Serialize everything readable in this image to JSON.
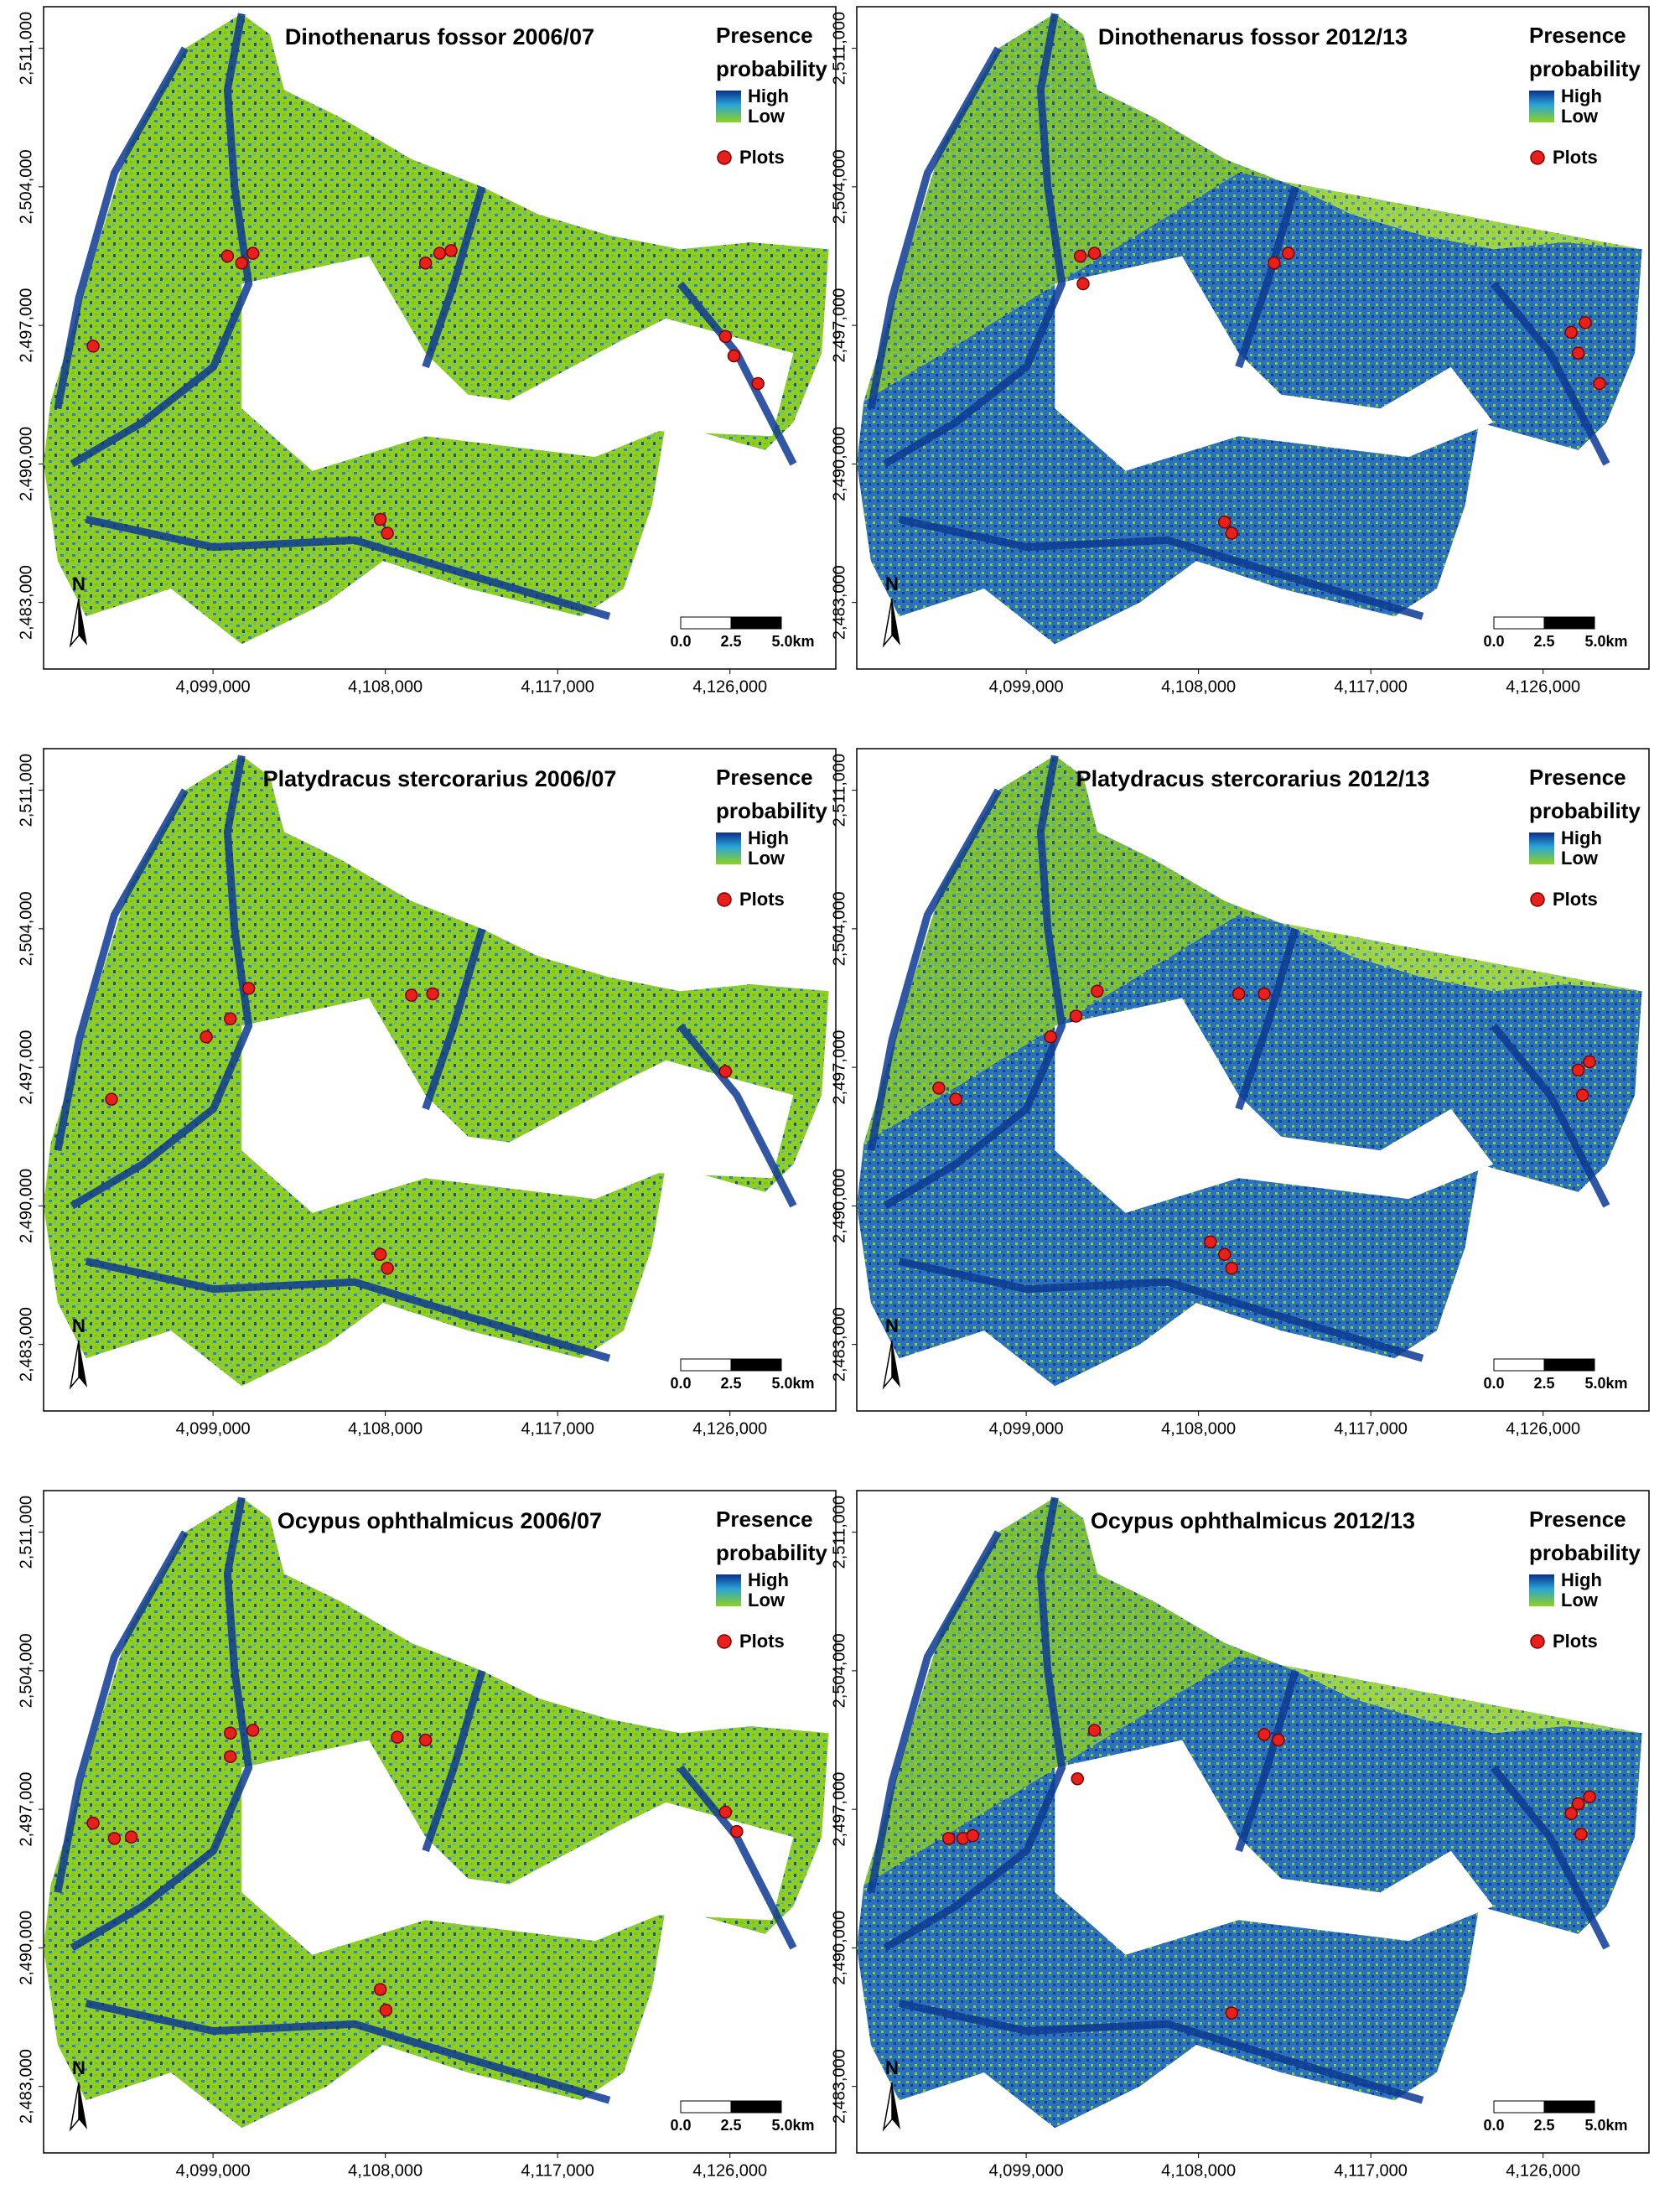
{
  "panels": [
    {
      "title": "Dinothenarus fossor 2006/07"
    },
    {
      "title": "Dinothenarus fossor 2012/13"
    },
    {
      "title": "Platydracus stercorarius 2006/07"
    },
    {
      "title": "Platydracus stercorarius 2012/13"
    },
    {
      "title": "Ocypus ophthalmicus 2006/07"
    },
    {
      "title": "Ocypus ophthalmicus 2012/13"
    }
  ],
  "legend": {
    "title_lines": [
      "Presence",
      "probability"
    ],
    "high": "High",
    "low": "Low",
    "plots": "Plots"
  },
  "scale_bar": {
    "labels": [
      "0.0",
      "2.5",
      "5.0km"
    ]
  },
  "north": "N",
  "axes": {
    "xlim": [
      4090150,
      4131530
    ],
    "ylim": [
      2479640,
      2513100
    ],
    "xticks": [
      {
        "value": 4099000,
        "label": "4,099,000"
      },
      {
        "value": 4108000,
        "label": "4,108,000"
      },
      {
        "value": 4117000,
        "label": "4,117,000"
      },
      {
        "value": 4126000,
        "label": "4,126,000"
      }
    ],
    "yticks": [
      {
        "value": 2483000,
        "label": "2,483,000"
      },
      {
        "value": 2490000,
        "label": "2,490,000"
      },
      {
        "value": 2497000,
        "label": "2,497,000"
      },
      {
        "value": 2504000,
        "label": "2,504,000"
      },
      {
        "value": 2511000,
        "label": "2,511,000"
      }
    ]
  }
}
